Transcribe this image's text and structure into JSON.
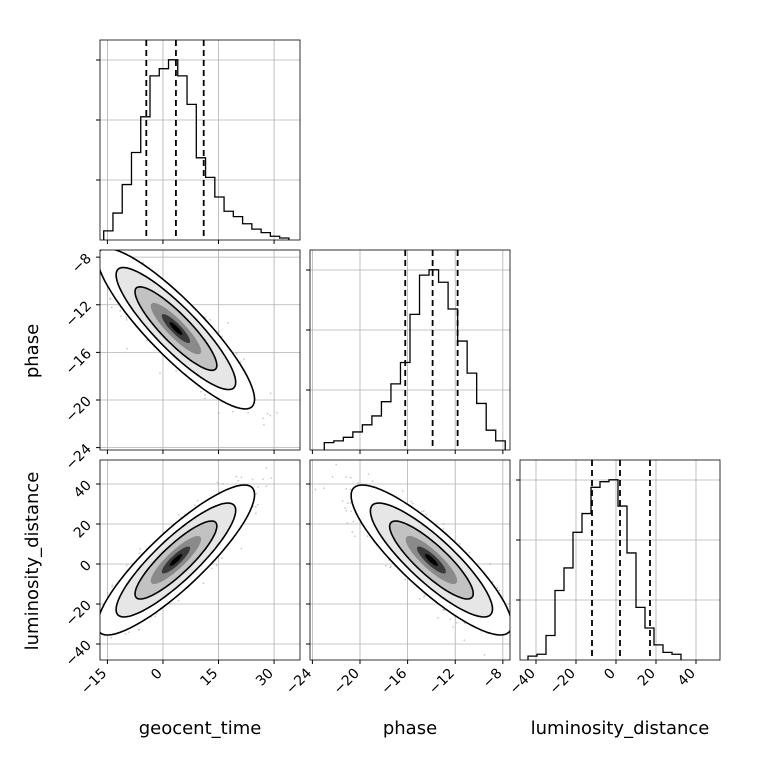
{
  "chart_data": {
    "type": "corner",
    "parameters": [
      "geocent_time",
      "phase",
      "luminosity_distance"
    ],
    "axis_ranges": {
      "geocent_time": [
        -17,
        37
      ],
      "phase": [
        -24.2,
        -7.4
      ],
      "luminosity_distance": [
        -48,
        52
      ]
    },
    "ticks": {
      "geocent_time": [
        -15,
        0,
        15,
        30
      ],
      "phase": [
        -24,
        -20,
        -16,
        -12,
        -8
      ],
      "luminosity_distance": [
        -40,
        -20,
        0,
        20,
        40
      ]
    },
    "grid": true,
    "hist_line_color": "#000000",
    "contour_color": "#000000",
    "scatter_color": "#9e9e9e",
    "quantiles": {
      "geocent_time": [
        -4.5,
        3.5,
        11
      ],
      "phase": [
        -16.2,
        -13.9,
        -11.8
      ],
      "luminosity_distance": [
        -12,
        2,
        17
      ]
    },
    "histograms": {
      "geocent_time": {
        "bin_start": -16,
        "bin_width": 2.5,
        "counts": [
          4,
          14,
          30,
          48,
          68,
          91,
          95,
          100,
          91,
          75,
          45,
          34,
          23,
          15,
          12,
          8,
          5,
          3,
          1,
          0
        ]
      },
      "phase": {
        "bin_start": -23,
        "bin_width": 0.8,
        "counts": [
          3,
          4,
          6,
          9,
          13,
          18,
          26,
          36,
          48,
          75,
          97,
          100,
          93,
          78,
          60,
          42,
          25,
          10,
          4
        ]
      },
      "luminosity_distance": {
        "bin_start": -44,
        "bin_width": 4.5,
        "counts": [
          1,
          2,
          12,
          36,
          48,
          67,
          77,
          91,
          94,
          95,
          81,
          56,
          27,
          16,
          7,
          3,
          2
        ]
      }
    },
    "pairs": [
      {
        "x": "geocent_time",
        "y": "phase",
        "mean": [
          3.5,
          -14.0
        ],
        "sd": [
          8.5,
          2.7
        ],
        "rho": -0.88
      },
      {
        "x": "geocent_time",
        "y": "luminosity_distance",
        "mean": [
          3.5,
          2.0
        ],
        "sd": [
          8.5,
          15.0
        ],
        "rho": 0.87
      },
      {
        "x": "phase",
        "y": "luminosity_distance",
        "mean": [
          -14.0,
          2.0
        ],
        "sd": [
          2.7,
          15.0
        ],
        "rho": -0.86
      }
    ]
  }
}
